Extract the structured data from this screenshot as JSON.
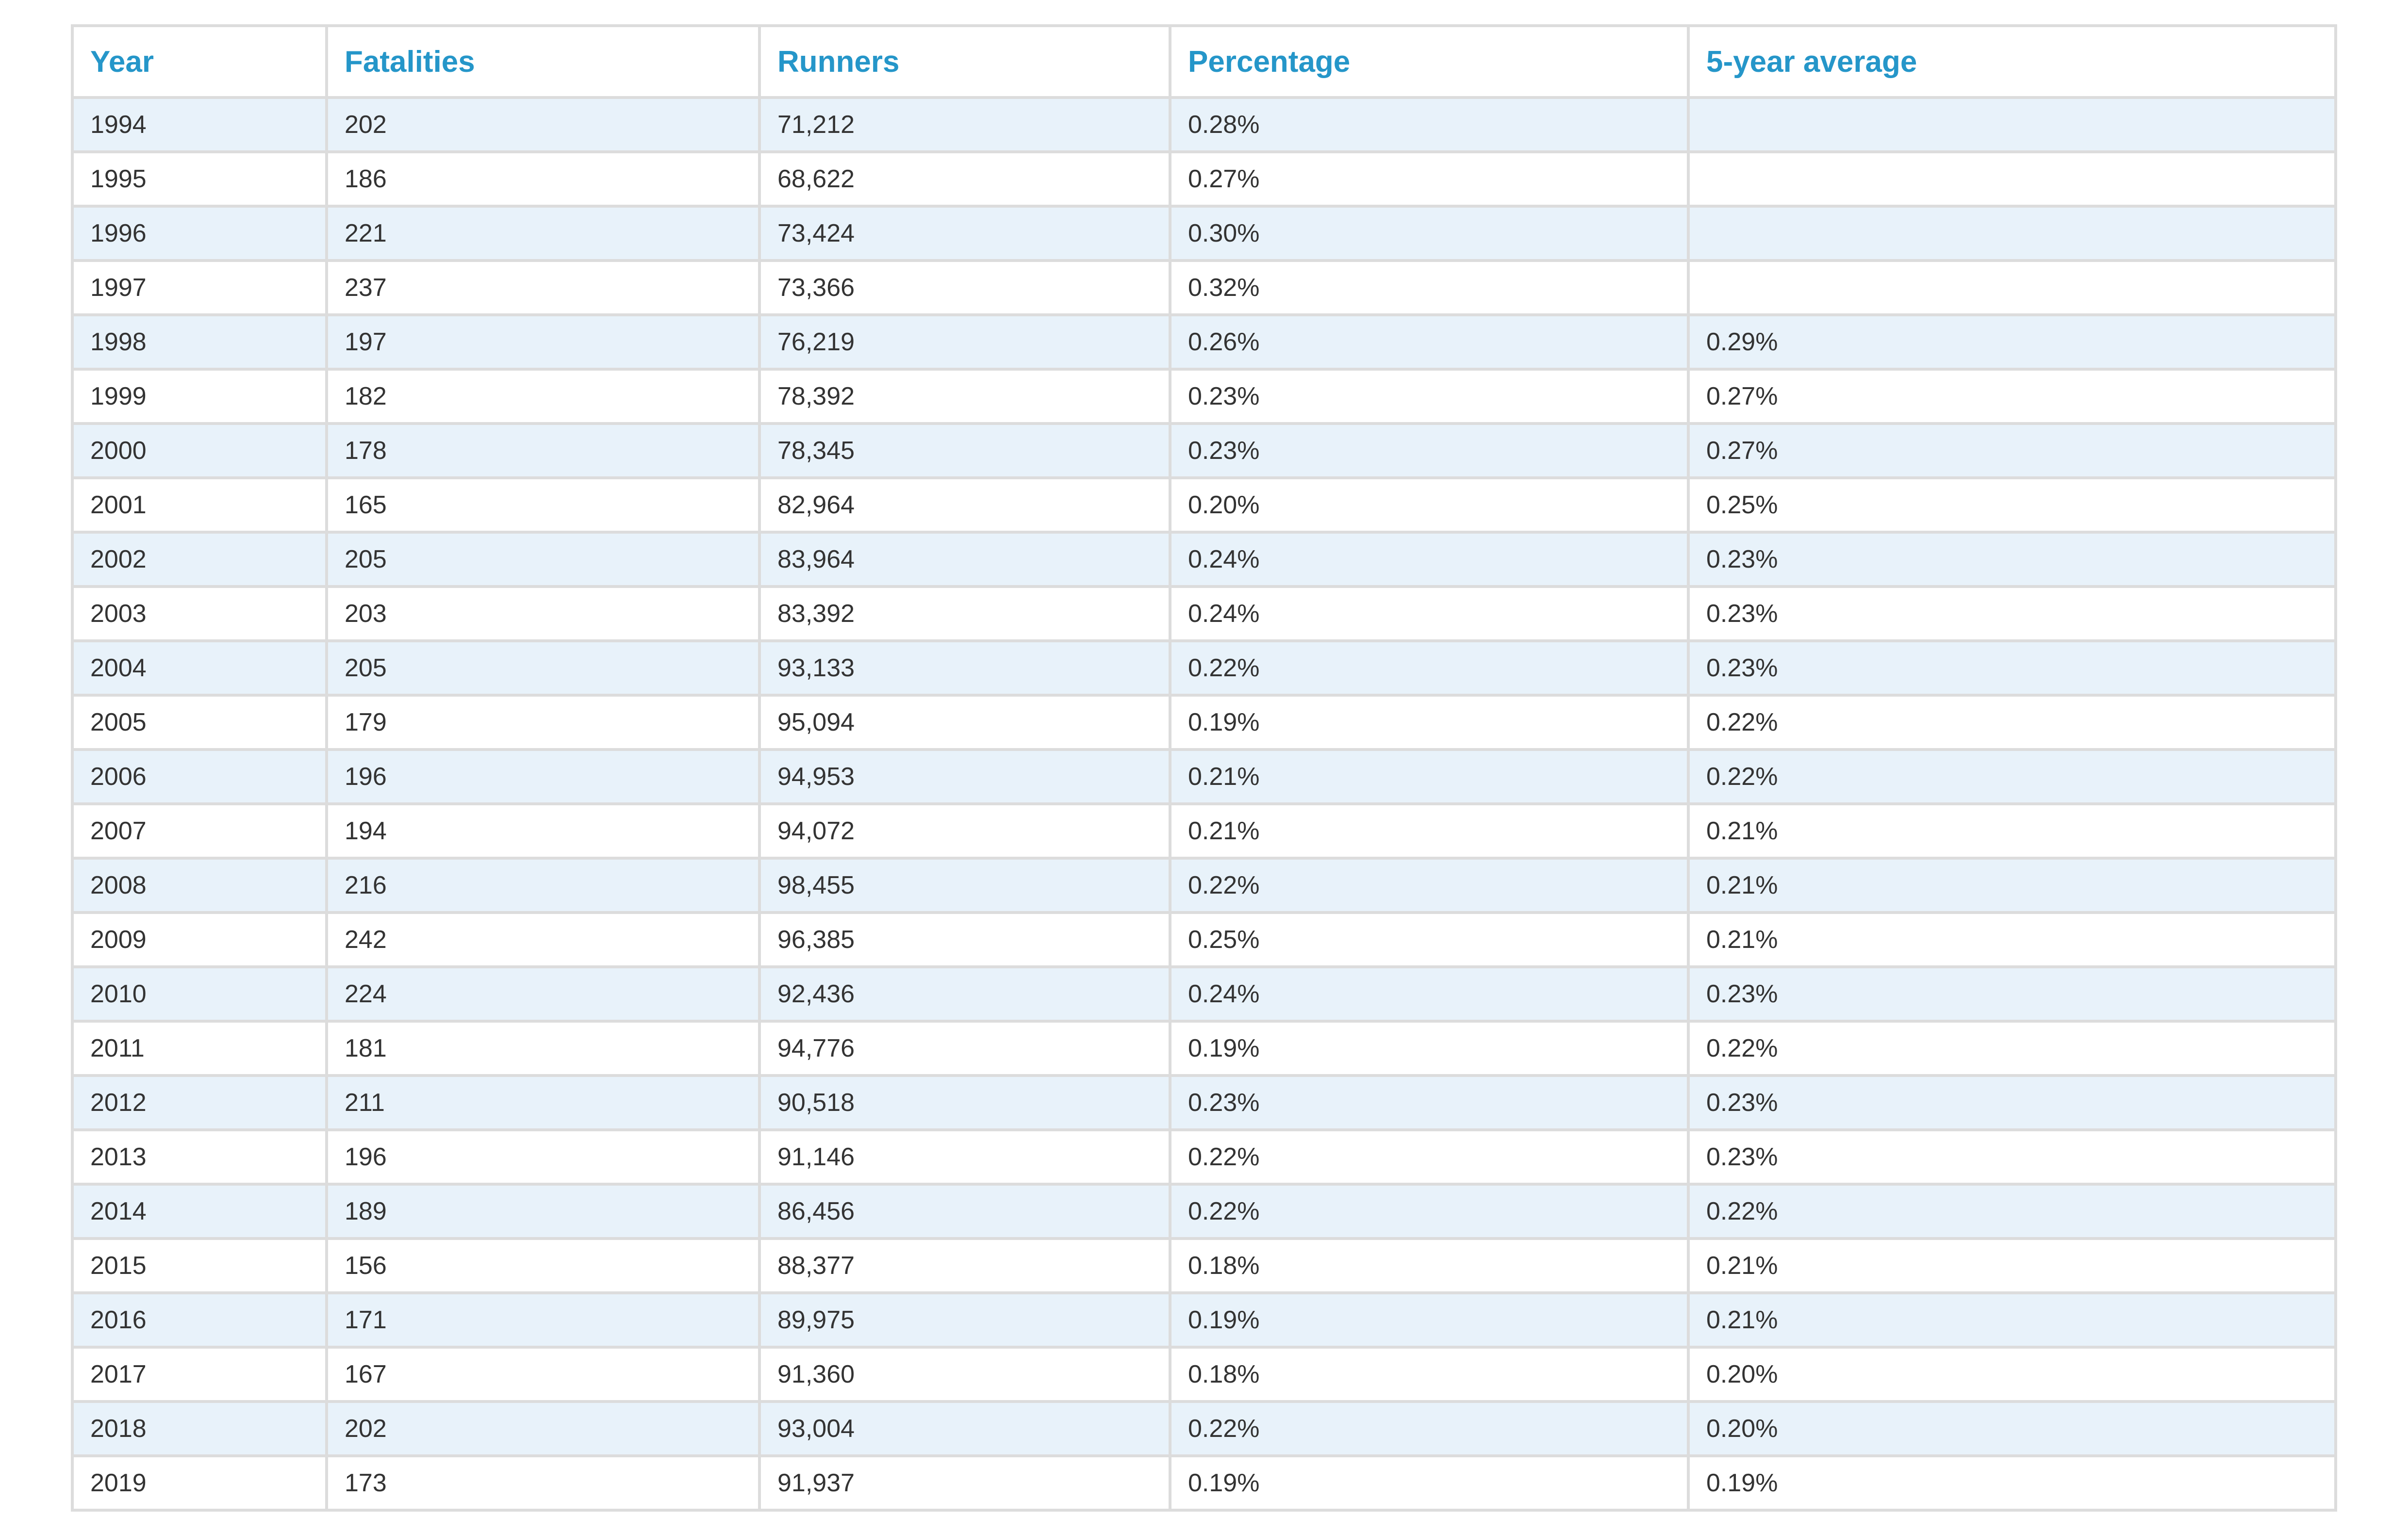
{
  "table": {
    "columns": [
      "Year",
      "Fatalities",
      "Runners",
      "Percentage",
      "5-year average"
    ],
    "rows": [
      [
        "1994",
        "202",
        "71,212",
        "0.28%",
        ""
      ],
      [
        "1995",
        "186",
        "68,622",
        "0.27%",
        ""
      ],
      [
        "1996",
        "221",
        "73,424",
        "0.30%",
        ""
      ],
      [
        "1997",
        "237",
        "73,366",
        "0.32%",
        ""
      ],
      [
        "1998",
        "197",
        "76,219",
        "0.26%",
        "0.29%"
      ],
      [
        "1999",
        "182",
        "78,392",
        "0.23%",
        "0.27%"
      ],
      [
        "2000",
        "178",
        "78,345",
        "0.23%",
        "0.27%"
      ],
      [
        "2001",
        "165",
        "82,964",
        "0.20%",
        "0.25%"
      ],
      [
        "2002",
        "205",
        "83,964",
        "0.24%",
        "0.23%"
      ],
      [
        "2003",
        "203",
        "83,392",
        "0.24%",
        "0.23%"
      ],
      [
        "2004",
        "205",
        "93,133",
        "0.22%",
        "0.23%"
      ],
      [
        "2005",
        "179",
        "95,094",
        "0.19%",
        "0.22%"
      ],
      [
        "2006",
        "196",
        "94,953",
        "0.21%",
        "0.22%"
      ],
      [
        "2007",
        "194",
        "94,072",
        "0.21%",
        "0.21%"
      ],
      [
        "2008",
        "216",
        "98,455",
        "0.22%",
        "0.21%"
      ],
      [
        "2009",
        "242",
        "96,385",
        "0.25%",
        "0.21%"
      ],
      [
        "2010",
        "224",
        "92,436",
        "0.24%",
        "0.23%"
      ],
      [
        "2011",
        "181",
        "94,776",
        "0.19%",
        "0.22%"
      ],
      [
        "2012",
        "211",
        "90,518",
        "0.23%",
        "0.23%"
      ],
      [
        "2013",
        "196",
        "91,146",
        "0.22%",
        "0.23%"
      ],
      [
        "2014",
        "189",
        "86,456",
        "0.22%",
        "0.22%"
      ],
      [
        "2015",
        "156",
        "88,377",
        "0.18%",
        "0.21%"
      ],
      [
        "2016",
        "171",
        "89,975",
        "0.19%",
        "0.21%"
      ],
      [
        "2017",
        "167",
        "91,360",
        "0.18%",
        "0.20%"
      ],
      [
        "2018",
        "202",
        "93,004",
        "0.22%",
        "0.20%"
      ],
      [
        "2019",
        "173",
        "91,937",
        "0.19%",
        "0.19%"
      ]
    ]
  },
  "colors": {
    "header_text": "#2596c9",
    "body_text": "#333333",
    "stripe": "#e8f2fa",
    "border": "#dcdcdc"
  }
}
